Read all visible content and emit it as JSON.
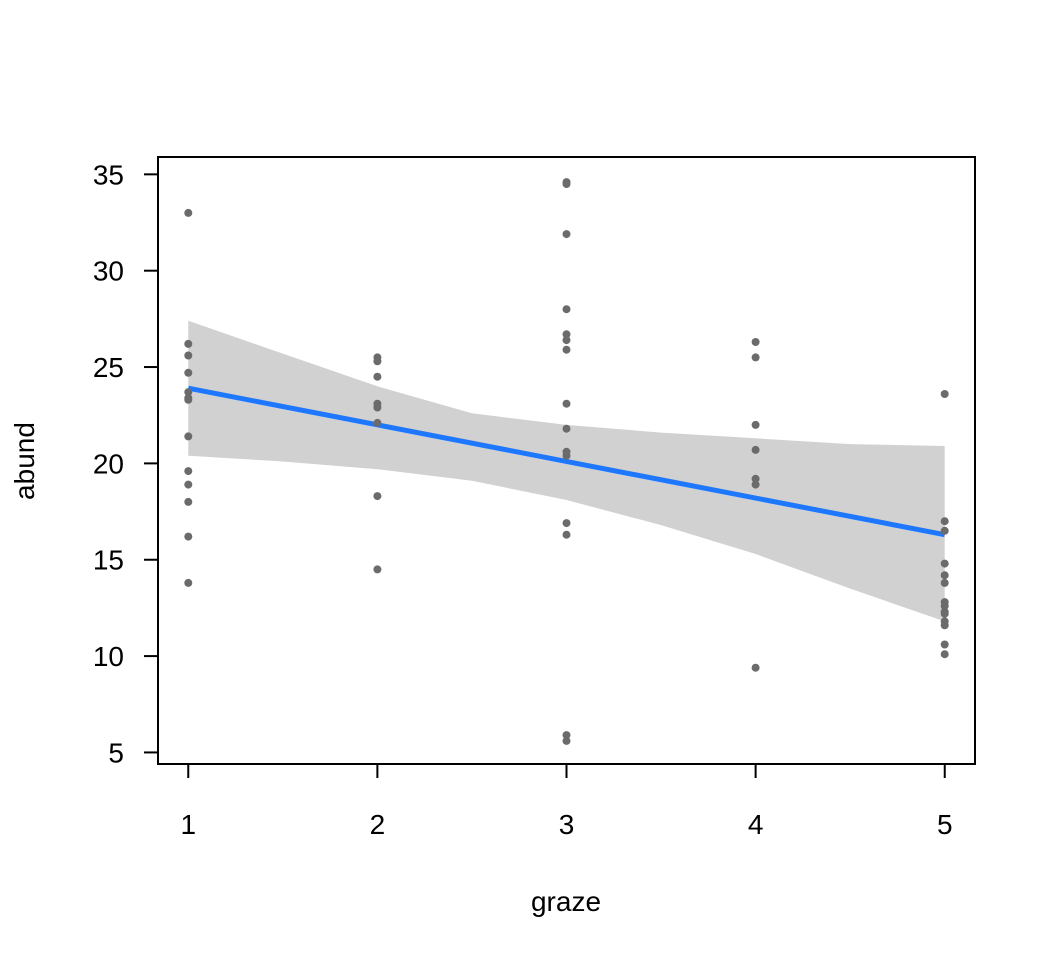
{
  "chart_data": {
    "type": "scatter",
    "xlabel": "graze",
    "ylabel": "abund",
    "xlim": [
      0.84,
      5.16
    ],
    "ylim": [
      4.4,
      35.9
    ],
    "xticks": [
      1,
      2,
      3,
      4,
      5
    ],
    "yticks": [
      5,
      10,
      15,
      20,
      25,
      30,
      35
    ],
    "grid": false,
    "points": [
      {
        "x": 1,
        "y": 33.0
      },
      {
        "x": 1,
        "y": 26.2
      },
      {
        "x": 1,
        "y": 25.6
      },
      {
        "x": 1,
        "y": 24.7
      },
      {
        "x": 1,
        "y": 23.7
      },
      {
        "x": 1,
        "y": 23.4
      },
      {
        "x": 1,
        "y": 23.3
      },
      {
        "x": 1,
        "y": 21.4
      },
      {
        "x": 1,
        "y": 19.6
      },
      {
        "x": 1,
        "y": 18.9
      },
      {
        "x": 1,
        "y": 18.0
      },
      {
        "x": 1,
        "y": 16.2
      },
      {
        "x": 1,
        "y": 13.8
      },
      {
        "x": 2,
        "y": 25.5
      },
      {
        "x": 2,
        "y": 25.3
      },
      {
        "x": 2,
        "y": 24.5
      },
      {
        "x": 2,
        "y": 23.1
      },
      {
        "x": 2,
        "y": 22.9
      },
      {
        "x": 2,
        "y": 22.1
      },
      {
        "x": 2,
        "y": 18.3
      },
      {
        "x": 2,
        "y": 14.5
      },
      {
        "x": 3,
        "y": 34.6
      },
      {
        "x": 3,
        "y": 34.5
      },
      {
        "x": 3,
        "y": 31.9
      },
      {
        "x": 3,
        "y": 28.0
      },
      {
        "x": 3,
        "y": 26.7
      },
      {
        "x": 3,
        "y": 26.4
      },
      {
        "x": 3,
        "y": 25.9
      },
      {
        "x": 3,
        "y": 23.1
      },
      {
        "x": 3,
        "y": 21.8
      },
      {
        "x": 3,
        "y": 20.6
      },
      {
        "x": 3,
        "y": 20.4
      },
      {
        "x": 3,
        "y": 16.9
      },
      {
        "x": 3,
        "y": 16.3
      },
      {
        "x": 3,
        "y": 5.9
      },
      {
        "x": 3,
        "y": 5.6
      },
      {
        "x": 4,
        "y": 26.3
      },
      {
        "x": 4,
        "y": 25.5
      },
      {
        "x": 4,
        "y": 22.0
      },
      {
        "x": 4,
        "y": 20.7
      },
      {
        "x": 4,
        "y": 19.2
      },
      {
        "x": 4,
        "y": 18.9
      },
      {
        "x": 4,
        "y": 9.4
      },
      {
        "x": 5,
        "y": 23.6
      },
      {
        "x": 5,
        "y": 17.0
      },
      {
        "x": 5,
        "y": 16.5
      },
      {
        "x": 5,
        "y": 14.8
      },
      {
        "x": 5,
        "y": 14.2
      },
      {
        "x": 5,
        "y": 13.8
      },
      {
        "x": 5,
        "y": 12.8
      },
      {
        "x": 5,
        "y": 12.6
      },
      {
        "x": 5,
        "y": 12.3
      },
      {
        "x": 5,
        "y": 12.2
      },
      {
        "x": 5,
        "y": 11.8
      },
      {
        "x": 5,
        "y": 11.6
      },
      {
        "x": 5,
        "y": 10.6
      },
      {
        "x": 5,
        "y": 10.1
      }
    ],
    "fit_line": {
      "x": [
        1,
        5
      ],
      "y": [
        23.9,
        16.3
      ]
    },
    "confidence_band": {
      "x": [
        1,
        1.5,
        2,
        2.5,
        3,
        3.5,
        4,
        4.5,
        5
      ],
      "upper": [
        27.4,
        25.7,
        24.0,
        22.6,
        22.0,
        21.6,
        21.3,
        21.0,
        20.9
      ],
      "lower": [
        20.4,
        20.1,
        19.7,
        19.1,
        18.1,
        16.8,
        15.3,
        13.5,
        11.8
      ]
    },
    "colors": {
      "points": "#6b6b6b",
      "fit_line": "#1e78ff",
      "band": "#d1d1d1",
      "axis": "#000000"
    }
  }
}
